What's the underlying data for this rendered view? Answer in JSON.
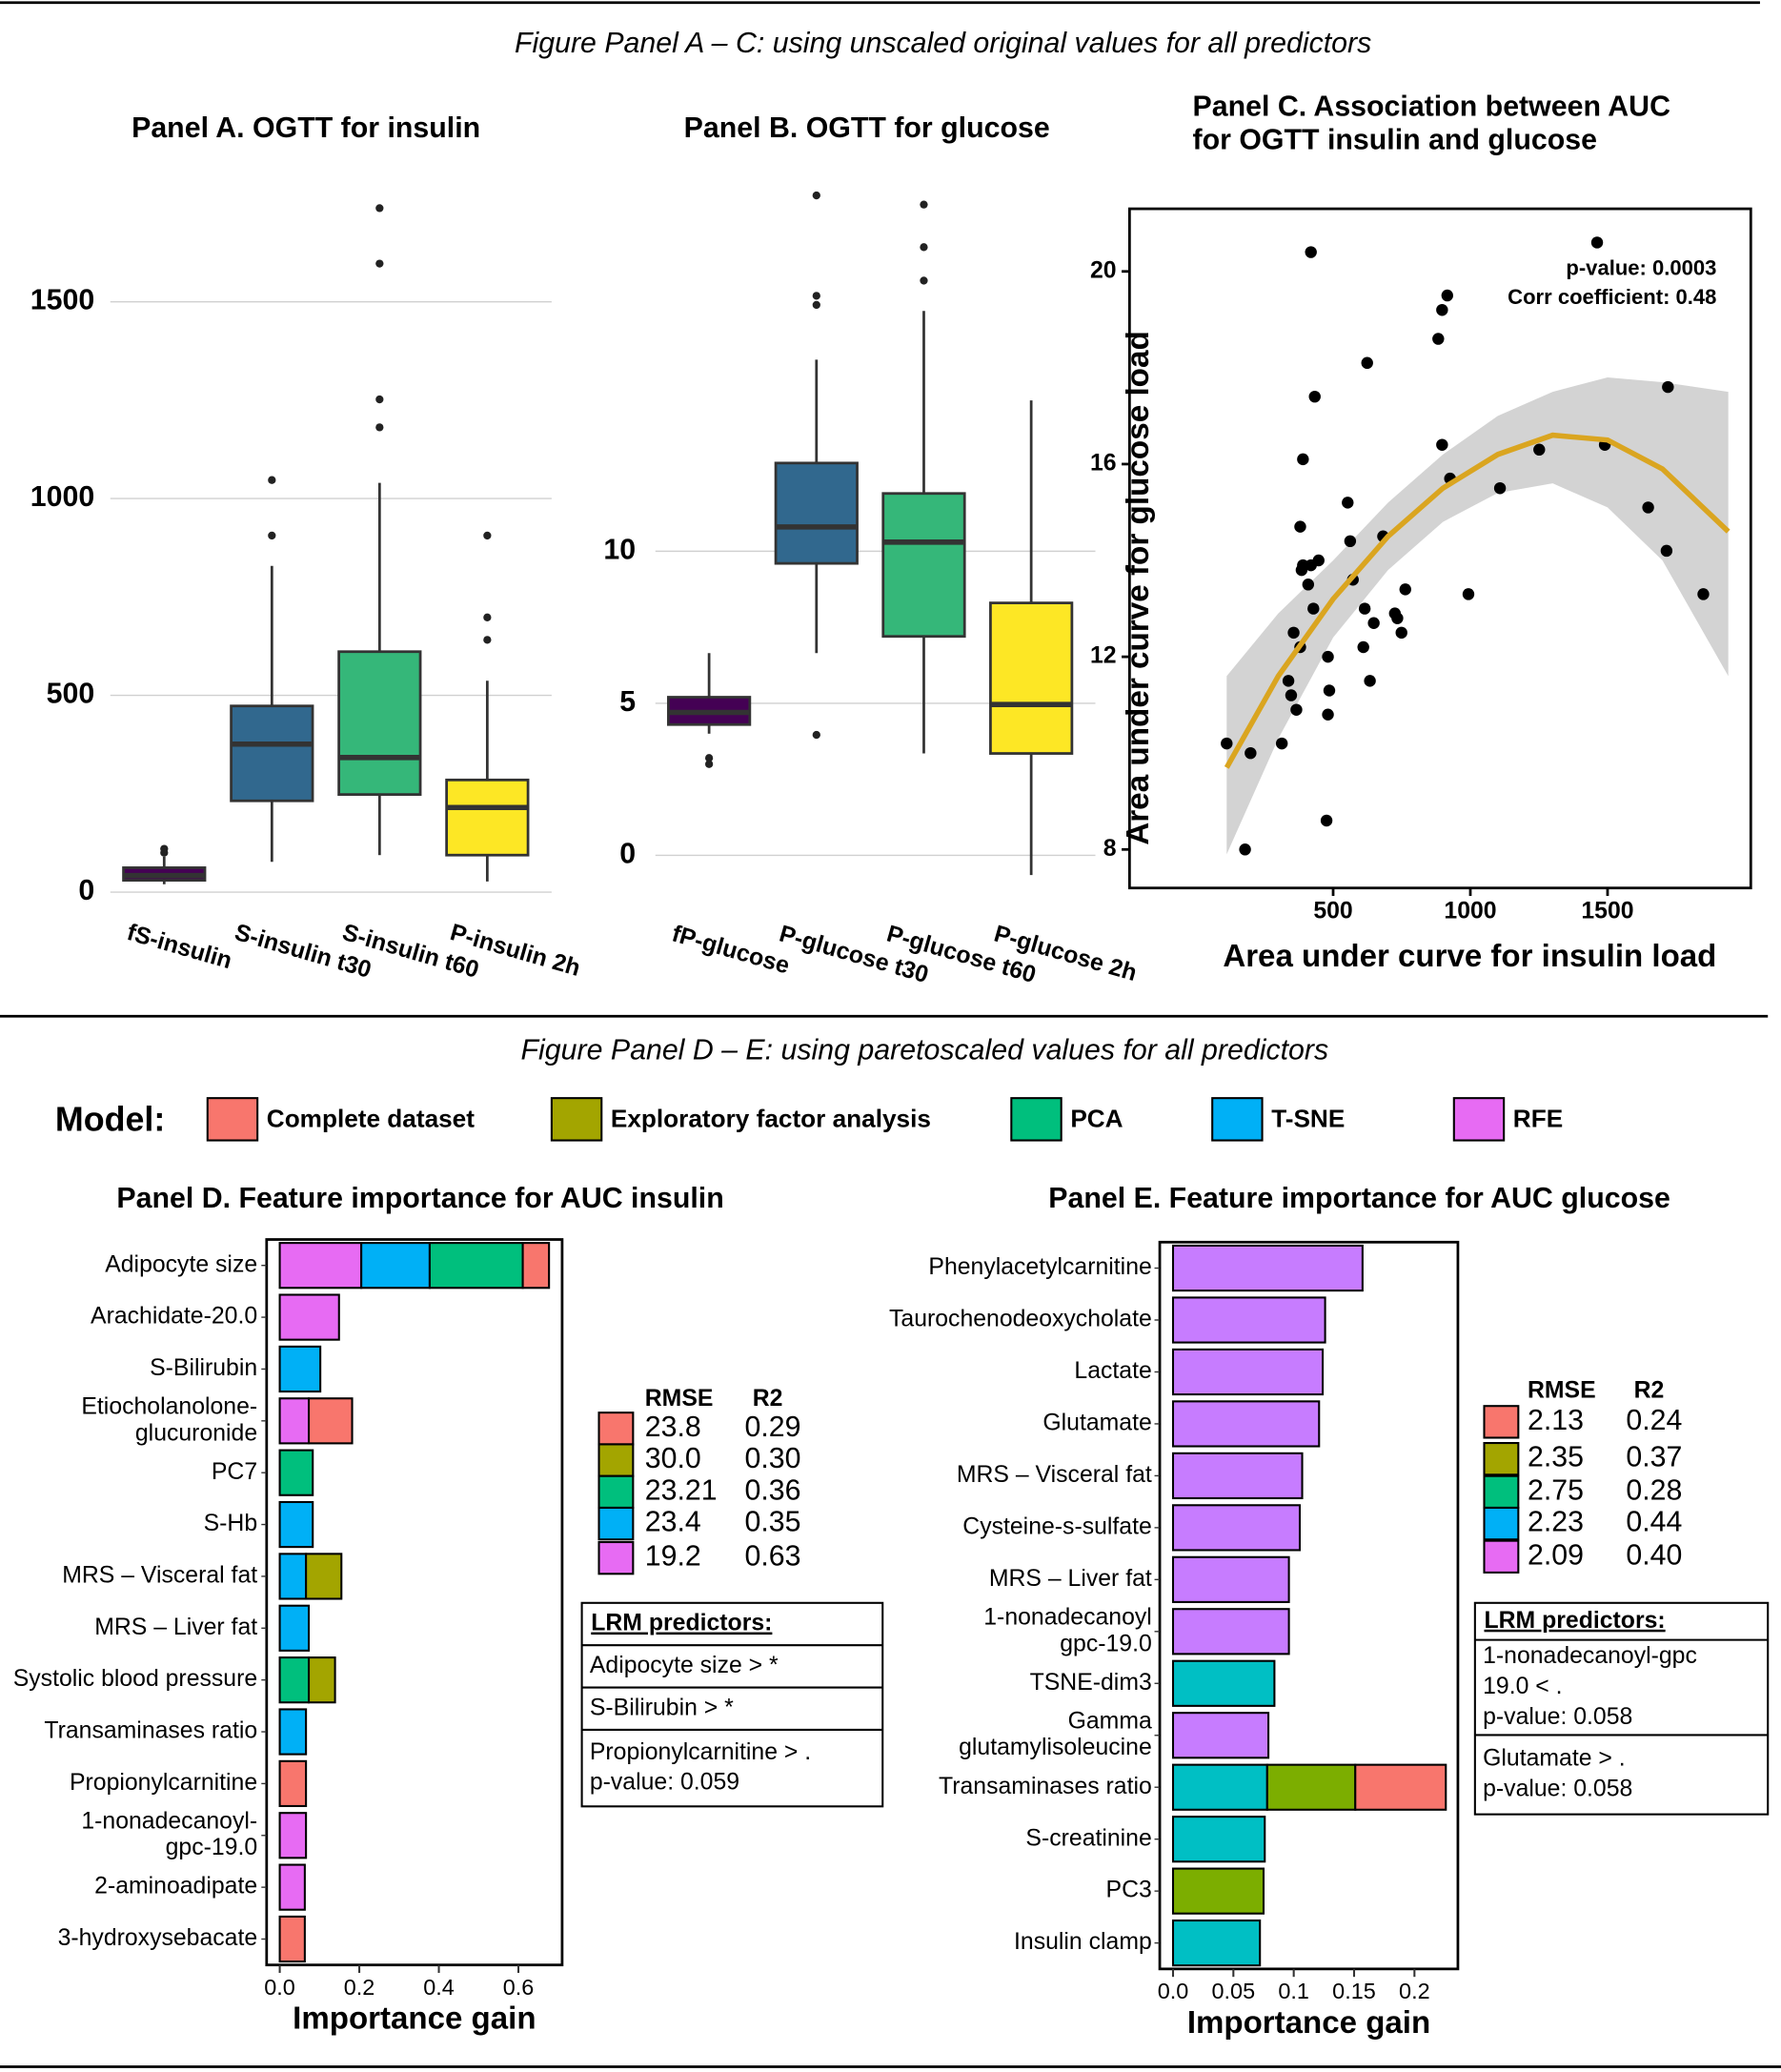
{
  "headings": [
    "Figure Panel A – C: using unscaled original values for all predictors",
    "Figure Panel D – E: using paretoscaled values for all predictors"
  ],
  "model_legend_title": "Model:",
  "chart_data": [
    {
      "type": "box",
      "title": "Panel A. OGTT for insulin",
      "categories": [
        "fS-insulin",
        "S-insulin t30",
        "S-insulin t60",
        "P-insulin 2h"
      ],
      "colors": [
        "#440154",
        "#31688e",
        "#35b779",
        "#fde725"
      ],
      "boxes": [
        {
          "low": 20,
          "q1": 30,
          "median": 42,
          "q3": 62,
          "high": 90,
          "outliers": [
            100,
            110
          ]
        },
        {
          "low": 77,
          "q1": 232,
          "median": 376,
          "q3": 473,
          "high": 829,
          "outliers": [
            906,
            1047
          ]
        },
        {
          "low": 94,
          "q1": 248,
          "median": 342,
          "q3": 611,
          "high": 1040,
          "outliers": [
            1181,
            1252,
            1597,
            1738
          ]
        },
        {
          "low": 27,
          "q1": 94,
          "median": 215,
          "q3": 285,
          "high": 537,
          "outliers": [
            641,
            698,
            906
          ]
        }
      ],
      "ylim": [
        -50,
        1780
      ],
      "yticks": [
        0,
        500,
        1000,
        1500
      ],
      "grid": true
    },
    {
      "type": "box",
      "title": "Panel B. OGTT for glucose",
      "categories": [
        "fP-glucose",
        "P-glucose t30",
        "P-glucose t60",
        "P-glucose 2h"
      ],
      "colors": [
        "#440154",
        "#31688e",
        "#35b779",
        "#fde725"
      ],
      "boxes": [
        {
          "low": 4.0,
          "q1": 4.3,
          "median": 4.7,
          "q3": 5.2,
          "high": 6.65,
          "outliers": [
            3.0,
            3.2
          ]
        },
        {
          "low": 6.65,
          "q1": 9.6,
          "median": 10.8,
          "q3": 12.9,
          "high": 16.3,
          "outliers": [
            3.96,
            18.1,
            18.4,
            21.7
          ]
        },
        {
          "low": 3.35,
          "q1": 7.2,
          "median": 10.3,
          "q3": 11.9,
          "high": 17.9,
          "outliers": [
            18.9,
            20,
            21.4
          ]
        },
        {
          "low": -0.65,
          "q1": 3.35,
          "median": 4.96,
          "q3": 8.3,
          "high": 14.96,
          "outliers": []
        }
      ],
      "ylim": [
        -1.9,
        22
      ],
      "yticks": [
        0,
        5,
        10
      ],
      "grid": true
    },
    {
      "type": "scatter",
      "title_lines": [
        "Panel C. Association between AUC",
        "for OGTT insulin and glucose"
      ],
      "xlabel": "Area under curve for insulin load",
      "ylabel": "Area under curve for glucose load",
      "annotations": [
        "p-value: 0.0003",
        "Corr coefficient: 0.48"
      ],
      "x": [
        112,
        179,
        199,
        419,
        433,
        1462,
        1849,
        1720,
        1715,
        1648,
        1490,
        1251,
        1108,
        993,
        926,
        897,
        916,
        897,
        883,
        624,
        313,
        337,
        347,
        366,
        380,
        390,
        380,
        390,
        385,
        409,
        419,
        447,
        481,
        476,
        486,
        481,
        553,
        562,
        572,
        615,
        610,
        634,
        648,
        682,
        725,
        734,
        749,
        763,
        356,
        428
      ],
      "y": [
        10.2,
        8.0,
        10.0,
        20.4,
        17.4,
        20.6,
        13.3,
        17.6,
        14.2,
        15.1,
        16.4,
        16.3,
        15.5,
        13.3,
        15.7,
        16.4,
        19.5,
        19.2,
        18.6,
        18.1,
        10.2,
        11.5,
        11.2,
        10.9,
        12.2,
        16.1,
        14.7,
        13.9,
        13.8,
        13.5,
        13.9,
        14.0,
        10.8,
        8.6,
        11.3,
        12.0,
        15.2,
        14.4,
        13.6,
        13.0,
        12.2,
        11.5,
        12.7,
        14.5,
        12.9,
        12.8,
        12.5,
        13.4,
        12.5,
        13.0
      ],
      "color": "#000000",
      "fit": {
        "x": [
          112,
          300,
          500,
          700,
          900,
          1100,
          1300,
          1500,
          1700,
          1940
        ],
        "y": [
          9.7,
          11.6,
          13.2,
          14.5,
          15.5,
          16.2,
          16.6,
          16.5,
          15.9,
          14.6
        ],
        "lower": [
          7.9,
          10.3,
          12.4,
          13.8,
          14.8,
          15.4,
          15.6,
          15.1,
          14.0,
          11.6
        ],
        "upper": [
          11.6,
          12.9,
          14.0,
          15.2,
          16.2,
          17.0,
          17.5,
          17.8,
          17.7,
          17.5
        ],
        "color": "#daa520",
        "band_color": "#d3d3d3"
      },
      "xlim": [
        -242,
        2022
      ],
      "ylim": [
        7.2,
        21.3
      ],
      "xticks": [
        500,
        1000,
        1500
      ],
      "yticks": [
        8,
        12,
        16,
        20
      ]
    },
    {
      "type": "hbar",
      "title": "Panel D. Feature importance for AUC insulin",
      "xlabel": "Importance gain",
      "categories": [
        "Adipocyte size",
        "Arachidate-20.0",
        "S-Bilirubin",
        [
          "Etiocholanolone-",
          "glucuronide"
        ],
        "PC7",
        "S-Hb",
        "MRS – Visceral fat",
        "MRS – Liver fat",
        "Systolic blood pressure",
        "Transaminases ratio",
        "Propionylcarnitine",
        [
          "1-nonadecanoyl-",
          "gpc-19.0"
        ],
        "2-aminoadipate",
        "3-hydroxysebacate"
      ],
      "series": [
        {
          "name": "RFE",
          "color": "#e76bf3",
          "values": [
            0.205,
            0.149,
            null,
            0.073,
            null,
            null,
            null,
            null,
            null,
            null,
            null,
            0.066,
            0.063,
            null
          ]
        },
        {
          "name": "T-SNE",
          "color": "#00b0f6",
          "values": [
            0.172,
            null,
            0.102,
            null,
            null,
            0.083,
            0.066,
            0.073,
            null,
            0.066,
            null,
            null,
            null,
            null
          ]
        },
        {
          "name": "PCA",
          "color": "#00bf7d",
          "values": [
            0.234,
            null,
            null,
            null,
            0.083,
            null,
            null,
            null,
            0.073,
            null,
            null,
            null,
            null,
            null
          ]
        },
        {
          "name": "Exploratory factor analysis",
          "color": "#a3a500",
          "values": [
            null,
            null,
            null,
            null,
            null,
            null,
            0.089,
            null,
            0.066,
            null,
            null,
            null,
            null,
            null
          ]
        },
        {
          "name": "Complete dataset",
          "color": "#f8766d",
          "values": [
            0.066,
            null,
            null,
            0.109,
            null,
            null,
            null,
            null,
            null,
            null,
            0.066,
            null,
            null,
            0.063
          ]
        }
      ],
      "xlim": [
        -0.033,
        0.71
      ],
      "xticks": [
        {
          "value": 0,
          "label": "0.0"
        },
        0.2,
        0.4,
        0.6
      ],
      "table": {
        "header": [
          "RMSE",
          "R2"
        ],
        "colors": [
          "#f8766d",
          "#a3a500",
          "#00bf7d",
          "#00b0f6",
          "#e76bf3"
        ],
        "rows": [
          [
            "23.8",
            "0.29"
          ],
          [
            "30.0",
            "0.30"
          ],
          [
            "23.21",
            "0.36"
          ],
          [
            "23.4",
            "0.35"
          ],
          [
            "19.2",
            "0.63"
          ]
        ]
      },
      "lrm_title": "LRM predictors:",
      "lrm_items": [
        [
          "Adipocyte size > *"
        ],
        [
          "S-Bilirubin > *"
        ],
        [
          "Propionylcarnitine > .",
          "p-value: 0.059"
        ]
      ]
    },
    {
      "type": "hbar",
      "title": "Panel E. Feature importance for AUC glucose",
      "xlabel": "Importance gain",
      "categories": [
        "Phenylacetylcarnitine",
        "Taurochenodeoxycholate",
        "Lactate",
        "Glutamate",
        "MRS – Visceral fat",
        "Cysteine-s-sulfate",
        "MRS – Liver fat",
        [
          "1-nonadecanoyl",
          "gpc-19.0"
        ],
        "TSNE-dim3",
        [
          "Gamma",
          "glutamylisoleucine"
        ],
        "Transaminases ratio",
        "S-creatinine",
        "PC3",
        "Insulin clamp"
      ],
      "series": [
        {
          "color": "#c77cff",
          "values": [
            0.157,
            0.126,
            0.124,
            0.121,
            0.107,
            0.105,
            0.096,
            0.096,
            null,
            0.079,
            null,
            null,
            null,
            null
          ]
        },
        {
          "color": "#00bfc4",
          "values": [
            null,
            null,
            null,
            null,
            null,
            null,
            null,
            null,
            0.084,
            null,
            0.078,
            0.076,
            null,
            0.072
          ]
        },
        {
          "color": "#7cae00",
          "values": [
            null,
            null,
            null,
            null,
            null,
            null,
            null,
            null,
            null,
            null,
            0.073,
            null,
            0.075,
            null
          ]
        },
        {
          "color": "#f8766d",
          "values": [
            null,
            null,
            null,
            null,
            null,
            null,
            null,
            null,
            null,
            null,
            0.075,
            null,
            null,
            null
          ]
        }
      ],
      "xlim": [
        -0.011,
        0.236
      ],
      "xticks": [
        {
          "value": 0,
          "label": "0.0"
        },
        0.05,
        0.1,
        0.15,
        0.2
      ],
      "table": {
        "header": [
          "RMSE",
          "R2"
        ],
        "colors": [
          "#f8766d",
          "#a3a500",
          "#00bf7d",
          "#00b0f6",
          "#e76bf3"
        ],
        "rows": [
          [
            "2.13",
            "0.24"
          ],
          [
            "2.35",
            "0.37"
          ],
          [
            "2.75",
            "0.28"
          ],
          [
            "2.23",
            "0.44"
          ],
          [
            "2.09",
            "0.40"
          ]
        ]
      },
      "lrm_title": "LRM predictors:",
      "lrm_items": [
        [
          "1-nonadecanoyl-gpc",
          "19.0 < .",
          "p-value: 0.058"
        ],
        [
          "Glutamate > .",
          "p-value: 0.058"
        ]
      ]
    }
  ]
}
